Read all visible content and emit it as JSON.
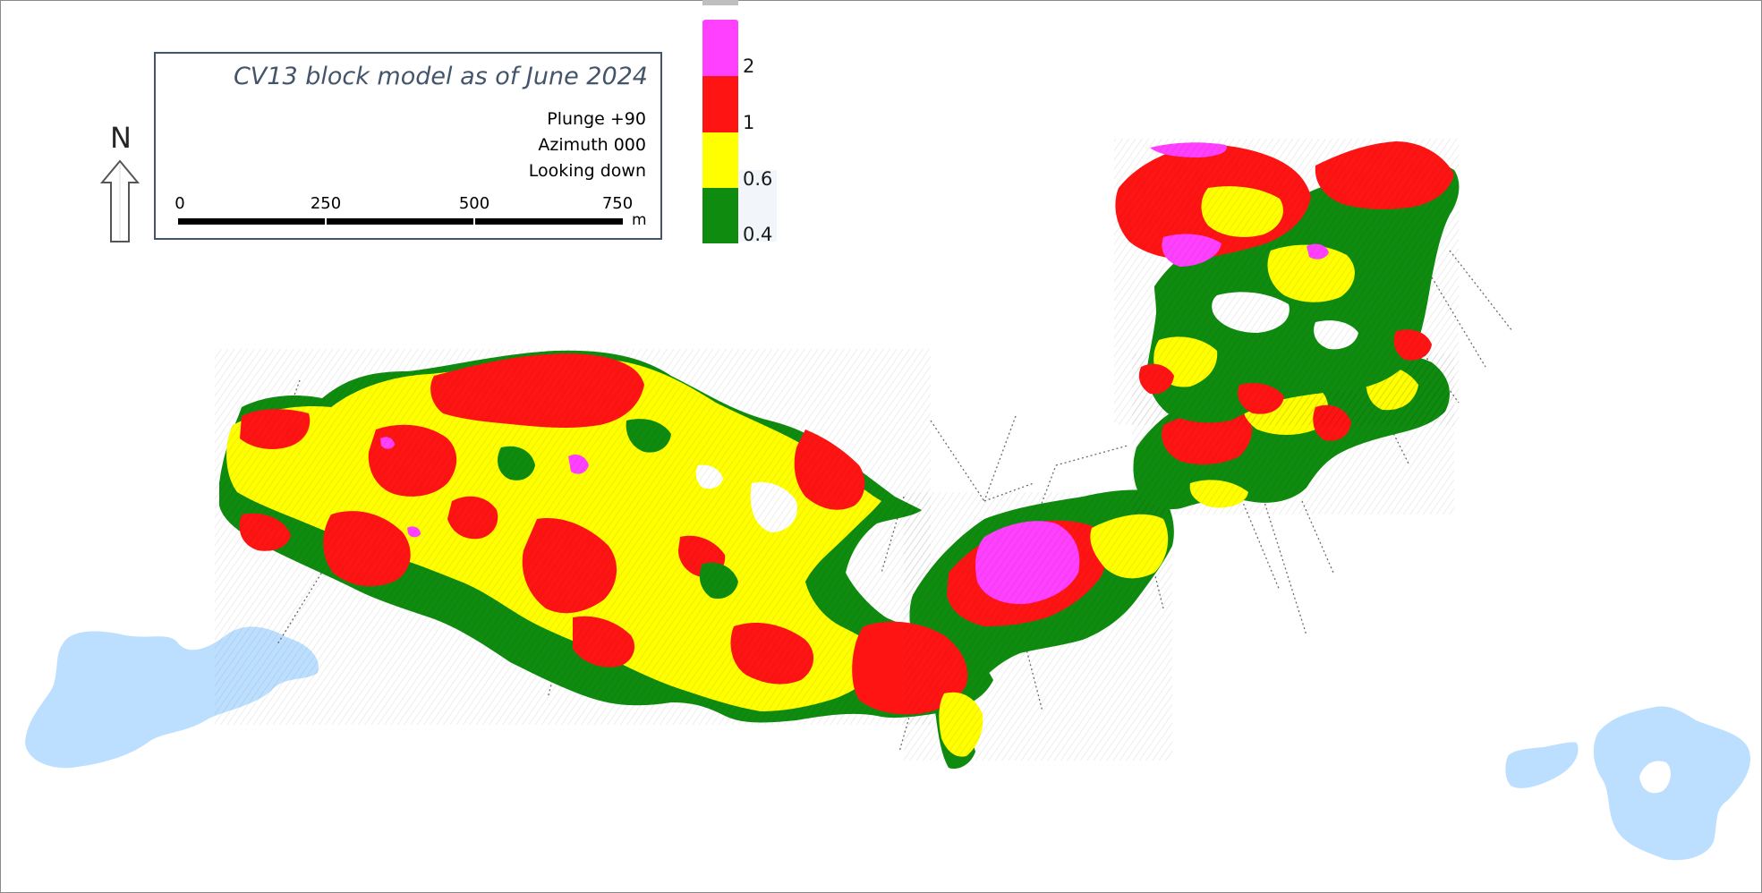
{
  "title": "CV13 block model as of June 2024",
  "view": {
    "plunge": "Plunge +90",
    "azimuth": "Azimuth 000",
    "looking": "Looking down"
  },
  "north": {
    "label": "N",
    "icon": "north-arrow-icon"
  },
  "scale_bar": {
    "ticks": [
      "0",
      "250",
      "500",
      "750"
    ],
    "unit": "m"
  },
  "legend": {
    "icon": "color-ramp-legend",
    "labels": [
      "2",
      "1",
      "0.6",
      "0.4"
    ],
    "classes": [
      {
        "name": "≥ 2",
        "color": "#ff40ff"
      },
      {
        "name": "1 – 2",
        "color": "#ff1414"
      },
      {
        "name": "0.6 – 1",
        "color": "#ffff00"
      },
      {
        "name": "0.4 – 0.6",
        "color": "#0f8c0f"
      }
    ]
  },
  "colors": {
    "grade_high": "#ff40ff",
    "grade_mid_high": "#ff1414",
    "grade_mid": "#ffff00",
    "grade_low": "#0f8c0f",
    "water": "#bddfff",
    "drillhole": "#6b6b6b",
    "title_text": "#44546a"
  }
}
